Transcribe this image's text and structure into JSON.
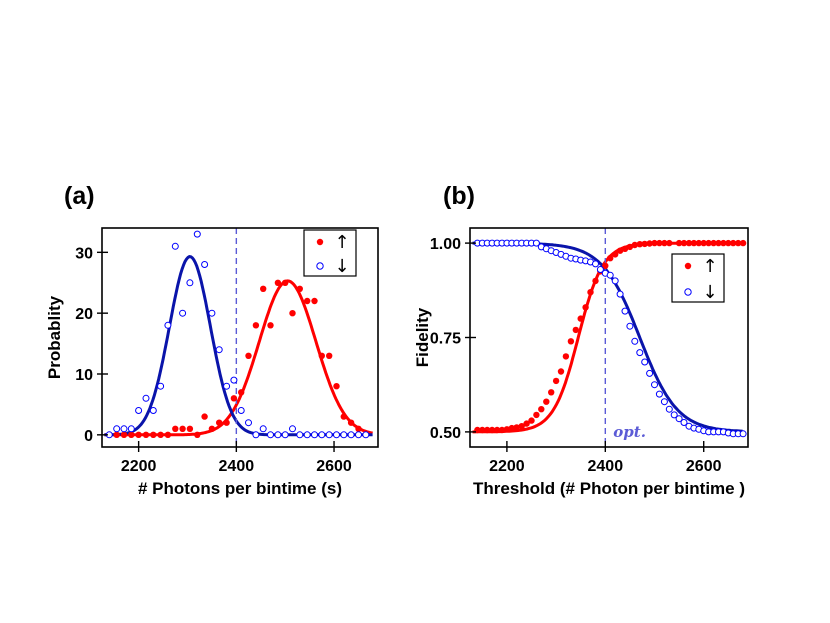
{
  "panel_labels": {
    "a": "(a)",
    "b": "(b)"
  },
  "colors": {
    "spin_up": "#ff0000",
    "spin_down": "#0000ff",
    "fit_up": "#ff0000",
    "fit_down": "#0a14aa",
    "threshold_line": "#5b5bd6"
  },
  "chart_data": [
    {
      "id": "a",
      "type": "scatter",
      "xlabel": "# Photons per bintime (s)",
      "ylabel": "Probablity",
      "xlim": [
        2125,
        2690
      ],
      "ylim": [
        -2,
        34
      ],
      "xticks": [
        2200,
        2400,
        2600
      ],
      "yticks": [
        0,
        10,
        20,
        30
      ],
      "legend_position": "top-right",
      "threshold_x": 2400,
      "series": [
        {
          "name": "↑",
          "style": "filled",
          "color": "#ff0000",
          "points": [
            [
              2140,
              0
            ],
            [
              2155,
              0
            ],
            [
              2170,
              0
            ],
            [
              2185,
              0
            ],
            [
              2200,
              0
            ],
            [
              2215,
              0
            ],
            [
              2230,
              0
            ],
            [
              2245,
              0
            ],
            [
              2260,
              0
            ],
            [
              2275,
              1
            ],
            [
              2290,
              1
            ],
            [
              2305,
              1
            ],
            [
              2320,
              0
            ],
            [
              2335,
              3
            ],
            [
              2350,
              1
            ],
            [
              2365,
              2
            ],
            [
              2380,
              2
            ],
            [
              2395,
              6
            ],
            [
              2410,
              7
            ],
            [
              2425,
              13
            ],
            [
              2440,
              18
            ],
            [
              2455,
              24
            ],
            [
              2470,
              18
            ],
            [
              2485,
              25
            ],
            [
              2500,
              25
            ],
            [
              2515,
              20
            ],
            [
              2530,
              24
            ],
            [
              2545,
              22
            ],
            [
              2560,
              22
            ],
            [
              2575,
              13
            ],
            [
              2590,
              13
            ],
            [
              2605,
              8
            ],
            [
              2620,
              3
            ],
            [
              2635,
              2
            ],
            [
              2650,
              1
            ],
            [
              2665,
              0
            ]
          ]
        },
        {
          "name": "↓",
          "style": "open",
          "color": "#0000ff",
          "points": [
            [
              2140,
              0
            ],
            [
              2155,
              1
            ],
            [
              2170,
              1
            ],
            [
              2185,
              1
            ],
            [
              2200,
              4
            ],
            [
              2215,
              6
            ],
            [
              2230,
              4
            ],
            [
              2245,
              8
            ],
            [
              2260,
              18
            ],
            [
              2275,
              31
            ],
            [
              2290,
              20
            ],
            [
              2305,
              25
            ],
            [
              2320,
              33
            ],
            [
              2335,
              28
            ],
            [
              2350,
              20
            ],
            [
              2365,
              14
            ],
            [
              2380,
              8
            ],
            [
              2395,
              9
            ],
            [
              2410,
              4
            ],
            [
              2425,
              2
            ],
            [
              2440,
              0
            ],
            [
              2455,
              1
            ],
            [
              2470,
              0
            ],
            [
              2485,
              0
            ],
            [
              2500,
              0
            ],
            [
              2515,
              1
            ],
            [
              2530,
              0
            ],
            [
              2545,
              0
            ],
            [
              2560,
              0
            ],
            [
              2575,
              0
            ],
            [
              2590,
              0
            ],
            [
              2605,
              0
            ],
            [
              2620,
              0
            ],
            [
              2635,
              0
            ],
            [
              2650,
              0
            ],
            [
              2665,
              0
            ]
          ]
        }
      ],
      "fits": [
        {
          "series": "↑",
          "color": "#ff0000",
          "amplitude": 25.3,
          "center": 2505,
          "sigma": 58
        },
        {
          "series": "↓",
          "color": "#0a14aa",
          "amplitude": 29.3,
          "center": 2305,
          "sigma": 42
        }
      ]
    },
    {
      "id": "b",
      "type": "scatter",
      "xlabel": "Threshold (# Photon per bintime )",
      "ylabel": "Fidelity",
      "xlim": [
        2125,
        2690
      ],
      "ylim": [
        0.46,
        1.04
      ],
      "xticks": [
        2200,
        2400,
        2600
      ],
      "yticks": [
        0.5,
        0.75,
        1.0
      ],
      "ytick_labels": [
        "0.50",
        "0.75",
        "1.00"
      ],
      "legend_position": "right",
      "threshold_x": 2400,
      "threshold_label": "opt.",
      "series": [
        {
          "name": "↑",
          "style": "filled",
          "color": "#ff0000",
          "points": [
            [
              2140,
              0.505
            ],
            [
              2150,
              0.505
            ],
            [
              2160,
              0.505
            ],
            [
              2170,
              0.505
            ],
            [
              2180,
              0.505
            ],
            [
              2190,
              0.505
            ],
            [
              2200,
              0.507
            ],
            [
              2210,
              0.51
            ],
            [
              2220,
              0.512
            ],
            [
              2230,
              0.515
            ],
            [
              2240,
              0.522
            ],
            [
              2250,
              0.53
            ],
            [
              2260,
              0.545
            ],
            [
              2270,
              0.56
            ],
            [
              2280,
              0.58
            ],
            [
              2290,
              0.605
            ],
            [
              2300,
              0.635
            ],
            [
              2310,
              0.66
            ],
            [
              2320,
              0.7
            ],
            [
              2330,
              0.74
            ],
            [
              2340,
              0.77
            ],
            [
              2350,
              0.8
            ],
            [
              2360,
              0.83
            ],
            [
              2370,
              0.87
            ],
            [
              2380,
              0.9
            ],
            [
              2390,
              0.925
            ],
            [
              2400,
              0.94
            ],
            [
              2410,
              0.96
            ],
            [
              2420,
              0.97
            ],
            [
              2430,
              0.98
            ],
            [
              2440,
              0.985
            ],
            [
              2450,
              0.99
            ],
            [
              2460,
              0.995
            ],
            [
              2470,
              0.997
            ],
            [
              2480,
              0.998
            ],
            [
              2490,
              0.999
            ],
            [
              2500,
              1.0
            ],
            [
              2510,
              1.0
            ],
            [
              2520,
              1.0
            ],
            [
              2530,
              1.0
            ],
            [
              2550,
              1.0
            ],
            [
              2560,
              1.0
            ],
            [
              2570,
              1.0
            ],
            [
              2580,
              1.0
            ],
            [
              2590,
              1.0
            ],
            [
              2600,
              1.0
            ],
            [
              2610,
              1.0
            ],
            [
              2620,
              1.0
            ],
            [
              2630,
              1.0
            ],
            [
              2640,
              1.0
            ],
            [
              2650,
              1.0
            ],
            [
              2660,
              1.0
            ],
            [
              2670,
              1.0
            ],
            [
              2680,
              1.0
            ]
          ]
        },
        {
          "name": "↓",
          "style": "open",
          "color": "#0000ff",
          "points": [
            [
              2140,
              1.0
            ],
            [
              2150,
              1.0
            ],
            [
              2160,
              1.0
            ],
            [
              2170,
              1.0
            ],
            [
              2180,
              1.0
            ],
            [
              2190,
              1.0
            ],
            [
              2200,
              1.0
            ],
            [
              2210,
              1.0
            ],
            [
              2220,
              1.0
            ],
            [
              2230,
              1.0
            ],
            [
              2240,
              1.0
            ],
            [
              2250,
              1.0
            ],
            [
              2260,
              1.0
            ],
            [
              2270,
              0.99
            ],
            [
              2280,
              0.985
            ],
            [
              2290,
              0.98
            ],
            [
              2300,
              0.975
            ],
            [
              2310,
              0.97
            ],
            [
              2320,
              0.965
            ],
            [
              2330,
              0.96
            ],
            [
              2340,
              0.958
            ],
            [
              2350,
              0.955
            ],
            [
              2360,
              0.953
            ],
            [
              2370,
              0.95
            ],
            [
              2380,
              0.945
            ],
            [
              2390,
              0.93
            ],
            [
              2400,
              0.92
            ],
            [
              2410,
              0.915
            ],
            [
              2420,
              0.9
            ],
            [
              2430,
              0.865
            ],
            [
              2440,
              0.82
            ],
            [
              2450,
              0.78
            ],
            [
              2460,
              0.74
            ],
            [
              2470,
              0.71
            ],
            [
              2480,
              0.685
            ],
            [
              2490,
              0.655
            ],
            [
              2500,
              0.625
            ],
            [
              2510,
              0.6
            ],
            [
              2520,
              0.58
            ],
            [
              2530,
              0.56
            ],
            [
              2540,
              0.545
            ],
            [
              2550,
              0.535
            ],
            [
              2560,
              0.525
            ],
            [
              2570,
              0.515
            ],
            [
              2580,
              0.51
            ],
            [
              2590,
              0.507
            ],
            [
              2600,
              0.503
            ],
            [
              2610,
              0.5
            ],
            [
              2620,
              0.5
            ],
            [
              2630,
              0.5
            ],
            [
              2640,
              0.5
            ],
            [
              2650,
              0.497
            ],
            [
              2660,
              0.495
            ],
            [
              2670,
              0.495
            ],
            [
              2680,
              0.495
            ]
          ]
        }
      ],
      "fits": [
        {
          "series": "↑",
          "color": "#ff0000",
          "low": 0.5,
          "high": 1.0,
          "center": 2345,
          "width": 25
        },
        {
          "series": "↓",
          "color": "#0a14aa",
          "low": 0.5,
          "high": 1.0,
          "center": 2470,
          "width": -38
        }
      ]
    }
  ]
}
